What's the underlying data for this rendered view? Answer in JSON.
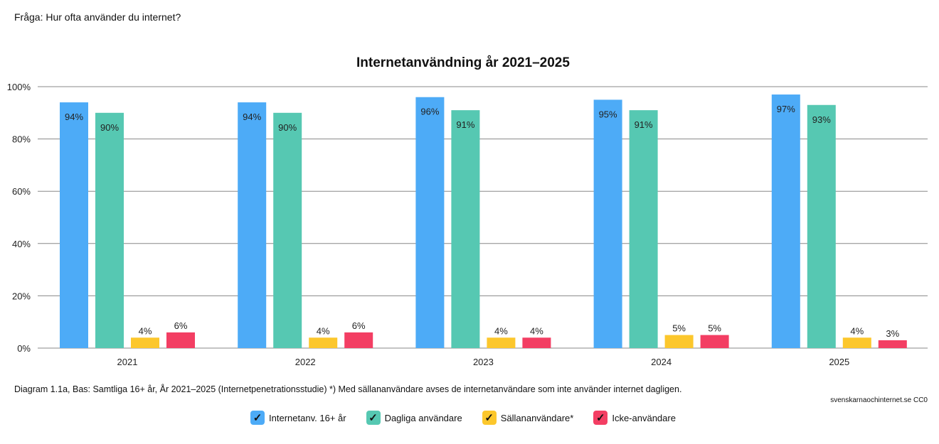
{
  "question": "Fråga: Hur ofta använder du internet?",
  "caption": "Diagram 1.1a, Bas: Samtliga 16+ år, År 2021–2025 (Internetpenetrationsstudie) *) Med sällananvändare avses de internetanvändare som inte använder internet dagligen.",
  "source": "svenskarnaochinternet.se CC0",
  "check_glyph": "✓",
  "chart_data": {
    "type": "bar",
    "title": "Internetanvändning år 2021–2025",
    "categories": [
      "2021",
      "2022",
      "2023",
      "2024",
      "2025"
    ],
    "ylim": [
      0,
      100
    ],
    "yticks": [
      0,
      20,
      40,
      60,
      80,
      100
    ],
    "ytick_labels": [
      "0%",
      "20%",
      "40%",
      "60%",
      "80%",
      "100%"
    ],
    "grid": true,
    "legend_position": "bottom",
    "series": [
      {
        "name": "Internetanv. 16+ år",
        "color": "#4dabf7",
        "values": [
          94,
          94,
          96,
          95,
          97
        ]
      },
      {
        "name": "Dagliga användare",
        "color": "#56c8b2",
        "values": [
          90,
          90,
          91,
          91,
          93
        ]
      },
      {
        "name": "Sällananvändare*",
        "color": "#fcc72c",
        "values": [
          4,
          4,
          4,
          5,
          4
        ]
      },
      {
        "name": "Icke-användare",
        "color": "#f33e63",
        "values": [
          6,
          6,
          4,
          5,
          3
        ]
      }
    ]
  }
}
